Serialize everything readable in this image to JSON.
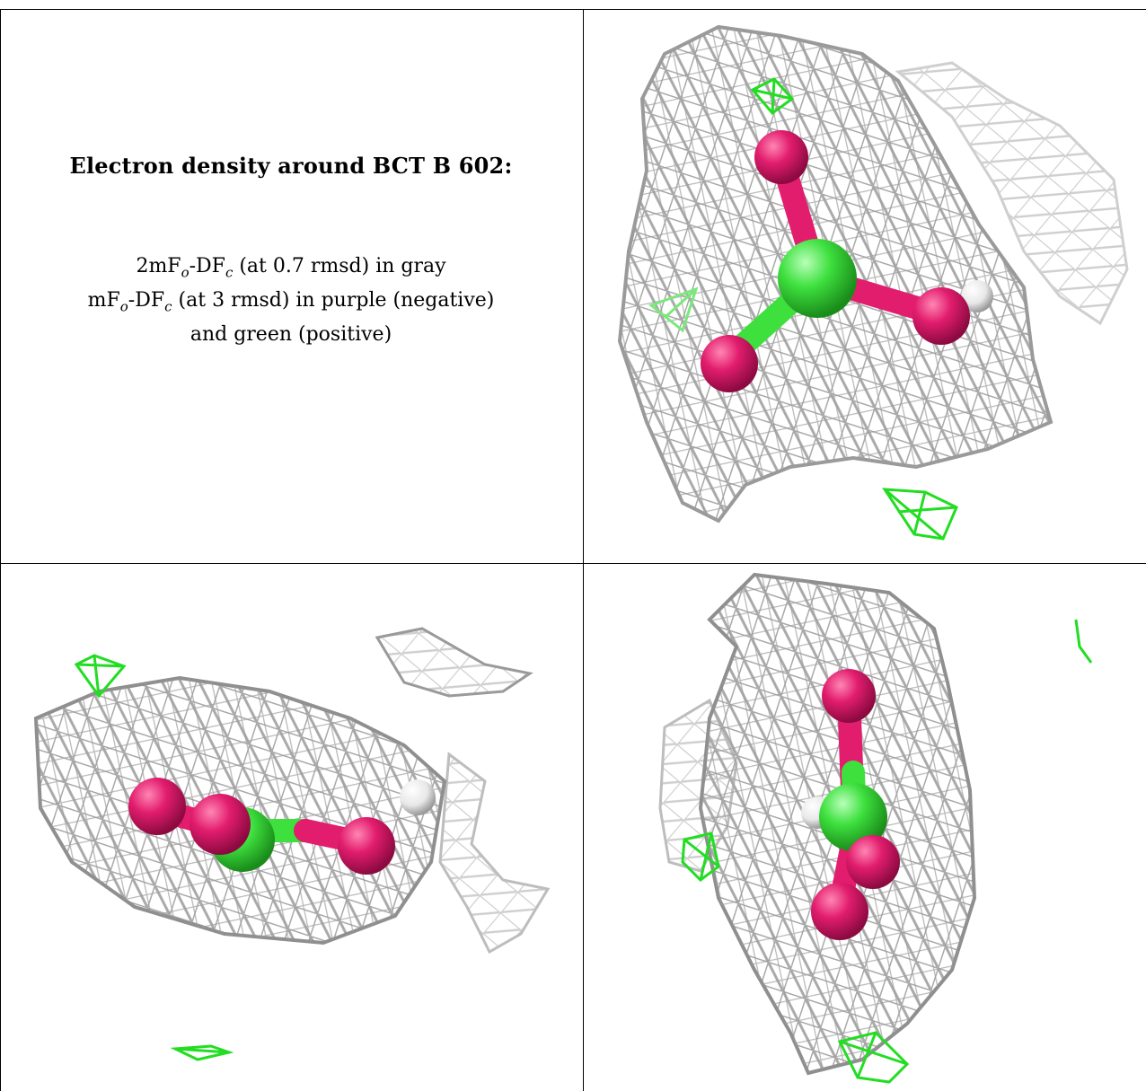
{
  "figure": {
    "heading": "Electron density around BCT B 602:",
    "legend": [
      {
        "pre": "2mF",
        "sub1": "o",
        "mid": "-DF",
        "sub2": "c",
        "post": " (at 0.7 rmsd) in gray"
      },
      {
        "pre": "mF",
        "sub1": "o",
        "mid": "-DF",
        "sub2": "c",
        "post": " (at 3 rmsd) in purple (negative)"
      },
      {
        "pre": "",
        "sub1": "",
        "mid": "",
        "sub2": "",
        "post": "and green (positive)"
      }
    ],
    "colors": {
      "mesh_gray": "#a9a9a9",
      "oxygen_pink": "#e21d6e",
      "carbon_green": "#3ee03e",
      "positive_green": "#22dd22",
      "hydrogen_white": "#e8e8e8"
    }
  }
}
